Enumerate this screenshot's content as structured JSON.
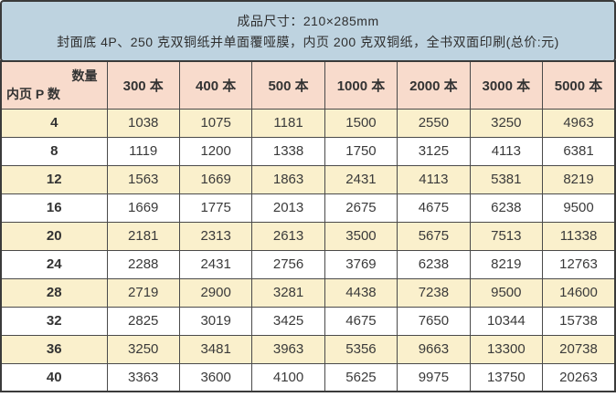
{
  "banner": {
    "line1": "成品尺寸：210×285mm",
    "line2": "封面底 4P、250 克双铜纸并单面覆哑膜，内页 200 克双铜纸，全书双面印刷(总价:元)"
  },
  "chart_data": {
    "type": "table",
    "title": "成品尺寸：210×285mm",
    "subtitle": "封面底 4P、250 克双铜纸并单面覆哑膜，内页 200 克双铜纸，全书双面印刷(总价:元)",
    "corner_top_right": "数量",
    "corner_bottom_left": "内页 P 数",
    "columns": [
      "300 本",
      "400 本",
      "500 本",
      "1000 本",
      "2000 本",
      "3000 本",
      "5000 本"
    ],
    "rows": [
      {
        "pages": "4",
        "prices": [
          1038,
          1075,
          1181,
          1500,
          2550,
          3250,
          4963
        ]
      },
      {
        "pages": "8",
        "prices": [
          1119,
          1200,
          1338,
          1750,
          3125,
          4113,
          6381
        ]
      },
      {
        "pages": "12",
        "prices": [
          1563,
          1669,
          1863,
          2431,
          4113,
          5381,
          8219
        ]
      },
      {
        "pages": "16",
        "prices": [
          1669,
          1775,
          2013,
          2675,
          4675,
          6238,
          9500
        ]
      },
      {
        "pages": "20",
        "prices": [
          2181,
          2313,
          2613,
          3500,
          5675,
          7513,
          11338
        ]
      },
      {
        "pages": "24",
        "prices": [
          2288,
          2431,
          2756,
          3769,
          6238,
          8219,
          12763
        ]
      },
      {
        "pages": "28",
        "prices": [
          2719,
          2900,
          3281,
          4438,
          7238,
          9500,
          14600
        ]
      },
      {
        "pages": "32",
        "prices": [
          2825,
          3019,
          3425,
          4675,
          7650,
          10344,
          15738
        ]
      },
      {
        "pages": "36",
        "prices": [
          3250,
          3481,
          3963,
          5356,
          9663,
          13300,
          20738
        ]
      },
      {
        "pages": "40",
        "prices": [
          3363,
          3600,
          4100,
          5625,
          9975,
          13750,
          20263
        ]
      }
    ]
  },
  "colors": {
    "banner_bg": "#bed3e0",
    "header_bg": "#f8dbcc",
    "row_alt_bg": "#faf0cc",
    "row_bg": "#ffffff",
    "border": "#3a3a3a",
    "text": "#333333"
  }
}
